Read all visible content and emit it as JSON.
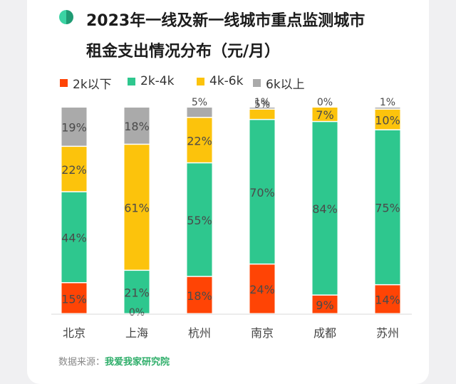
{
  "title": "2023年一线及新一线城市重点监测城市租金支出情况分布（元/月）",
  "title_line1": "2023年一线及新一线城市重点监测城市",
  "title_line2": "租金支出情况分布（元/月）",
  "source_label": "数据来源：",
  "source_org": "我爱我家研究院",
  "chart_data": {
    "type": "bar",
    "stacked": true,
    "percent_stacked": true,
    "categories": [
      "北京",
      "上海",
      "杭州",
      "南京",
      "成都",
      "苏州"
    ],
    "series": [
      {
        "name": "2k以下",
        "color": "#ff4405",
        "values": [
          15,
          0,
          18,
          24,
          9,
          14
        ],
        "labels": [
          "15%",
          "0%",
          "18%",
          "24%",
          "9%",
          "14%"
        ]
      },
      {
        "name": "2k-4k",
        "color": "#2ec78e",
        "values": [
          44,
          21,
          55,
          70,
          84,
          75
        ],
        "labels": [
          "44%",
          "21%",
          "55%",
          "70%",
          "84%",
          "75%"
        ]
      },
      {
        "name": "4k-6k",
        "color": "#fcc30c",
        "values": [
          22,
          61,
          22,
          5,
          7,
          10
        ],
        "labels": [
          "22%",
          "61%",
          "22%",
          "5%",
          "7%",
          "10%"
        ]
      },
      {
        "name": "6k以上",
        "color": "#aaaaaa",
        "values": [
          19,
          18,
          5,
          1,
          0,
          1
        ],
        "labels": [
          "19%",
          "18%",
          "5%",
          "1%",
          "0%",
          "1%"
        ]
      }
    ],
    "ylim": [
      0,
      100
    ],
    "grid": false,
    "legend_position": "top-left"
  }
}
